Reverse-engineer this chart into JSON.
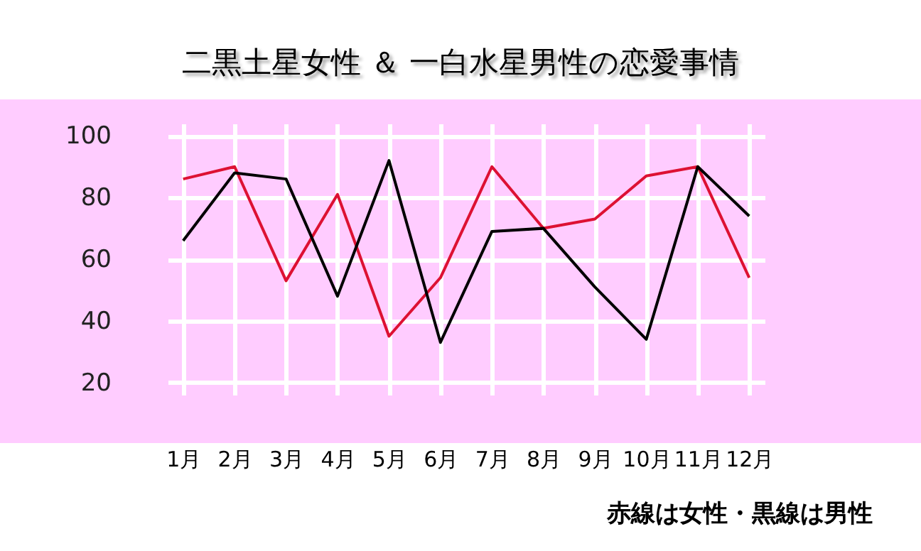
{
  "chart_data": {
    "type": "line",
    "title": "二黒土星女性 ＆ 一白水星男性の恋愛事情",
    "categories": [
      "1月",
      "2月",
      "3月",
      "4月",
      "5月",
      "6月",
      "7月",
      "8月",
      "9月",
      "10月",
      "11月",
      "12月"
    ],
    "series": [
      {
        "color": "#dd1133",
        "values": [
          86,
          90,
          53,
          81,
          35,
          54,
          90,
          70,
          73,
          87,
          90,
          54
        ]
      },
      {
        "color": "#000000",
        "values": [
          66,
          88,
          86,
          48,
          92,
          33,
          69,
          70,
          51,
          34,
          90,
          74
        ]
      }
    ],
    "ylim": [
      16,
      104
    ],
    "yticks": [
      20,
      40,
      60,
      80,
      100
    ],
    "grid": true,
    "legend": false,
    "annotations": [
      "赤線は女性・黒線は男性"
    ]
  }
}
